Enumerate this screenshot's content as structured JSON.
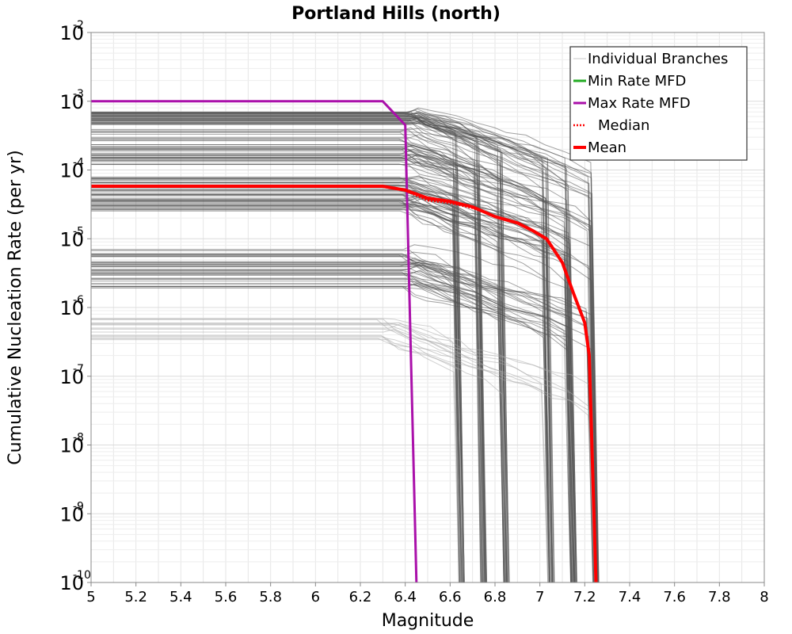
{
  "chart_data": {
    "type": "line",
    "title": "Portland Hills (north)",
    "xlabel": "Magnitude",
    "ylabel": "Cumulative Nucleation Rate (per yr)",
    "xlim": [
      5,
      8
    ],
    "ylim_log10": [
      -10,
      -2
    ],
    "x_ticks": [
      "5",
      "5.2",
      "5.4",
      "5.6",
      "5.8",
      "6",
      "6.2",
      "6.4",
      "6.6",
      "6.8",
      "7",
      "7.2",
      "7.4",
      "7.6",
      "7.8",
      "8"
    ],
    "y_ticks": [
      {
        "base": "10",
        "exp": "-2"
      },
      {
        "base": "10",
        "exp": "-3"
      },
      {
        "base": "10",
        "exp": "-4"
      },
      {
        "base": "10",
        "exp": "-5"
      },
      {
        "base": "10",
        "exp": "-6"
      },
      {
        "base": "10",
        "exp": "-7"
      },
      {
        "base": "10",
        "exp": "-8"
      },
      {
        "base": "10",
        "exp": "-9"
      },
      {
        "base": "10",
        "exp": "-10"
      }
    ],
    "grid": true,
    "legend_position": "top-right",
    "legend": [
      {
        "name": "Individual Branches",
        "color": "#c8c8c8",
        "style": "solid-thin"
      },
      {
        "name": "Min Rate MFD",
        "color": "#22aa22",
        "style": "solid"
      },
      {
        "name": "Max Rate MFD",
        "color": "#aa10aa",
        "style": "solid"
      },
      {
        "name": "Median",
        "color": "#ff0000",
        "style": "dotted"
      },
      {
        "name": "Mean",
        "color": "#ff0000",
        "style": "solid-thick"
      }
    ],
    "branch_groups": [
      {
        "rate_low": 0.00045,
        "rate_high": 0.0007,
        "knee": 6.42,
        "cutoffs": [
          6.65,
          6.75,
          6.85,
          7.05,
          7.15,
          7.25
        ],
        "count": 40,
        "color": "#555555"
      },
      {
        "rate_low": 0.00012,
        "rate_high": 0.0004,
        "knee": 6.4,
        "cutoffs": [
          6.65,
          6.75,
          6.85,
          7.05,
          7.15,
          7.25
        ],
        "count": 40,
        "color": "#555555"
      },
      {
        "rate_low": 2.5e-05,
        "rate_high": 8e-05,
        "knee": 6.4,
        "cutoffs": [
          6.65,
          6.75,
          6.85,
          7.05,
          7.15,
          7.25
        ],
        "count": 50,
        "color": "#555555"
      },
      {
        "rate_low": 1.8e-06,
        "rate_high": 7e-06,
        "knee": 6.4,
        "cutoffs": [
          6.65,
          6.75,
          6.85,
          7.05,
          7.15,
          7.25
        ],
        "count": 40,
        "color": "#555555"
      },
      {
        "rate_low": 3.3e-07,
        "rate_high": 7.2e-07,
        "knee": 6.3,
        "cutoffs": [
          6.65,
          6.75,
          6.85,
          7.05,
          7.15,
          7.25
        ],
        "count": 15,
        "color": "#aaaaaa"
      }
    ],
    "series": [
      {
        "name": "Max Rate MFD",
        "color": "#aa10aa",
        "x": [
          5.0,
          6.3,
          6.4,
          6.45,
          6.45
        ],
        "y": [
          0.001,
          0.001,
          0.00045,
          1e-10,
          1e-10
        ]
      },
      {
        "name": "Median",
        "color": "#ff0000",
        "x": [
          5.0,
          6.3,
          6.4,
          6.5,
          6.6,
          6.7,
          6.8,
          6.9,
          6.97,
          7.03,
          7.1,
          7.15,
          7.2,
          7.22,
          7.25
        ],
        "y": [
          5.7e-05,
          5.7e-05,
          5e-05,
          3.6e-05,
          3.3e-05,
          2.8e-05,
          2.1e-05,
          1.7e-05,
          1.3e-05,
          9.5e-06,
          4.5e-06,
          1.6e-06,
          6e-07,
          2e-07,
          1e-10
        ]
      },
      {
        "name": "Mean",
        "color": "#ff0000",
        "x": [
          5.0,
          6.3,
          6.4,
          6.5,
          6.6,
          6.7,
          6.8,
          6.9,
          6.97,
          7.03,
          7.1,
          7.15,
          7.2,
          7.22,
          7.25
        ],
        "y": [
          5.8e-05,
          5.8e-05,
          5.1e-05,
          3.9e-05,
          3.5e-05,
          2.9e-05,
          2.1e-05,
          1.7e-05,
          1.3e-05,
          1e-05,
          4.5e-06,
          1.6e-06,
          6e-07,
          2e-07,
          1e-10
        ]
      }
    ]
  }
}
